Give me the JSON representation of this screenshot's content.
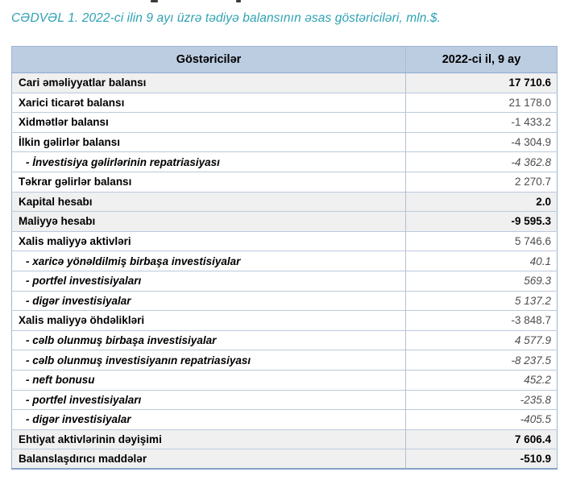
{
  "page": {
    "title": "CƏDVƏL 1. 2022-ci ilin 9 ayı üzrə tədiyə balansının əsas göstəriciləri, mln.$."
  },
  "colors": {
    "title_color": "#2fa2b3",
    "header_bg": "#bccde2",
    "major_row_bg": "#f0f0f1",
    "border_outer": "#9cb3d4",
    "value_muted": "#4d4d4d"
  },
  "table": {
    "header": {
      "col_label": "Göstəricilər",
      "col_value": "2022-ci il, 9 ay"
    },
    "rows": [
      {
        "label": "Cari əməliyyatlar balansı",
        "value": "17 710.6",
        "style": "major"
      },
      {
        "label": "Xarici ticarət balansı",
        "value": "21 178.0",
        "style": "normal"
      },
      {
        "label": "Xidmətlər balansı",
        "value": "-1 433.2",
        "style": "normal"
      },
      {
        "label": "İlkin gəlirlər balansı",
        "value": "-4 304.9",
        "style": "normal"
      },
      {
        "label": "- İnvestisiya gəlirlərinin repatriasiyası",
        "value": "-4 362.8",
        "style": "sub"
      },
      {
        "label": "Təkrar gəlirlər balansı",
        "value": "2 270.7",
        "style": "normal"
      },
      {
        "label": "Kapital hesabı",
        "value": "2.0",
        "style": "major"
      },
      {
        "label": "Maliyyə hesabı",
        "value": "-9 595.3",
        "style": "major"
      },
      {
        "label": "Xalis maliyyə aktivləri",
        "value": "5 746.6",
        "style": "normal"
      },
      {
        "label": "- xaricə yönəldilmiş birbaşa investisiyalar",
        "value": "40.1",
        "style": "sub"
      },
      {
        "label": "- portfel investisiyaları",
        "value": "569.3",
        "style": "sub"
      },
      {
        "label": "- digər investisiyalar",
        "value": "5 137.2",
        "style": "sub"
      },
      {
        "label": "Xalis maliyyə öhdəlikləri",
        "value": "-3 848.7",
        "style": "normal"
      },
      {
        "label": "- cəlb olunmuş birbaşa investisiyalar",
        "value": "4 577.9",
        "style": "sub"
      },
      {
        "label": "- cəlb olunmuş investisiyanın repatriasiyası",
        "value": "-8 237.5",
        "style": "sub"
      },
      {
        "label": "- neft bonusu",
        "value": "452.2",
        "style": "sub"
      },
      {
        "label": "- portfel investisiyaları",
        "value": "-235.8",
        "style": "sub"
      },
      {
        "label": "- digər investisiyalar",
        "value": "-405.5",
        "style": "sub"
      },
      {
        "label": "Ehtiyat aktivlərinin dəyişimi",
        "value": "7 606.4",
        "style": "major"
      },
      {
        "label": "Balanslaşdırıcı maddələr",
        "value": "-510.9",
        "style": "major"
      }
    ]
  }
}
